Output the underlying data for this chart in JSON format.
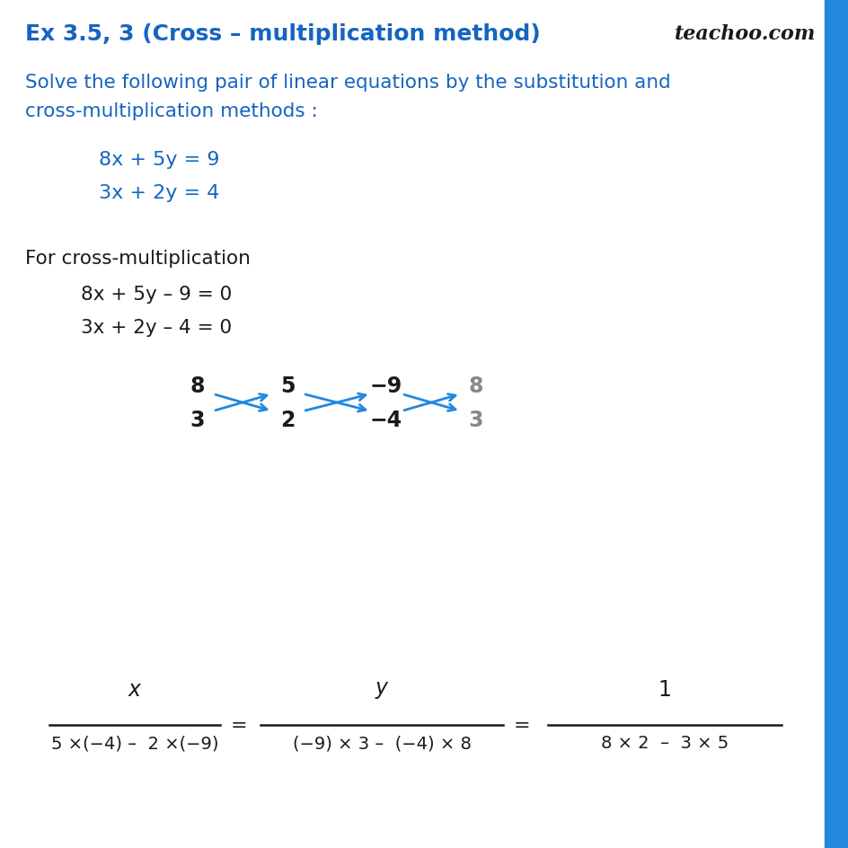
{
  "title": "Ex 3.5, 3 (Cross – multiplication method)",
  "teachoo": "teachoo.com",
  "bg_color": "#ffffff",
  "blue_color": "#1565C0",
  "title_color": "#1565C0",
  "arrow_color": "#2288DD",
  "black_color": "#1a1a1a",
  "gray_color": "#888888",
  "sidebar_color": "#2288DD",
  "line1_q": "8x + 5y = 9",
  "line2_q": "3x + 2y = 4",
  "for_cross": "For cross-multiplication",
  "line1_cross": "8x + 5y – 9 = 0",
  "line2_cross": "3x + 2y – 4 = 0",
  "desc1": "Solve the following pair of linear equations by the substitution and",
  "desc2": "cross-multiplication methods :",
  "denom1": "5 ×(−4) –  2 ×(−9)",
  "denom2": "(−9) × 3 –  (−4) × 8",
  "denom3": "8 × 2  –  3 × 5"
}
